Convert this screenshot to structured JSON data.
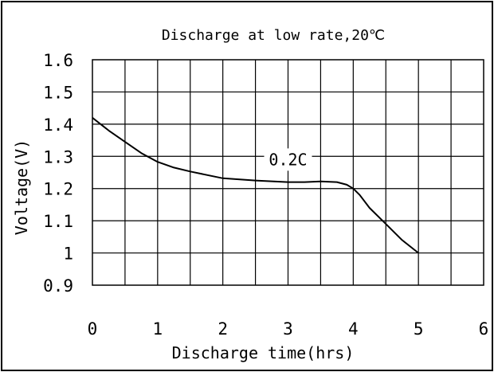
{
  "chart_data": {
    "type": "line",
    "title": "Discharge at low rate,20℃",
    "xlabel": "Discharge time(hrs)",
    "ylabel": "Voltage(V)",
    "xlim": [
      0,
      6
    ],
    "ylim": [
      0.9,
      1.6
    ],
    "xticks": [
      {
        "value": 0,
        "label": "0"
      },
      {
        "value": 1,
        "label": "1"
      },
      {
        "value": 2,
        "label": "2"
      },
      {
        "value": 3,
        "label": "3"
      },
      {
        "value": 4,
        "label": "4"
      },
      {
        "value": 5,
        "label": "5"
      },
      {
        "value": 6,
        "label": "6"
      }
    ],
    "yticks": [
      {
        "value": 0.9,
        "label": "0.9"
      },
      {
        "value": 1.0,
        "label": "1"
      },
      {
        "value": 1.1,
        "label": "1.1"
      },
      {
        "value": 1.2,
        "label": "1.2"
      },
      {
        "value": 1.3,
        "label": "1.3"
      },
      {
        "value": 1.4,
        "label": "1.4"
      },
      {
        "value": 1.5,
        "label": "1.5"
      },
      {
        "value": 1.6,
        "label": "1.6"
      }
    ],
    "x_grid_step": 0.5,
    "y_grid_step": 0.1,
    "grid": true,
    "series": [
      {
        "name": "0.2C",
        "x": [
          0,
          0.25,
          0.5,
          0.75,
          1.0,
          1.25,
          1.5,
          2.0,
          2.5,
          3.0,
          3.25,
          3.5,
          3.75,
          3.9,
          4.0,
          4.1,
          4.25,
          4.5,
          4.75,
          5.0
        ],
        "y": [
          1.42,
          1.38,
          1.345,
          1.31,
          1.283,
          1.265,
          1.253,
          1.232,
          1.225,
          1.22,
          1.22,
          1.222,
          1.22,
          1.212,
          1.2,
          1.18,
          1.14,
          1.09,
          1.04,
          1.0
        ]
      }
    ],
    "annotations": [
      {
        "text": "0.2C",
        "x": 3.0,
        "y": 1.29
      }
    ]
  }
}
